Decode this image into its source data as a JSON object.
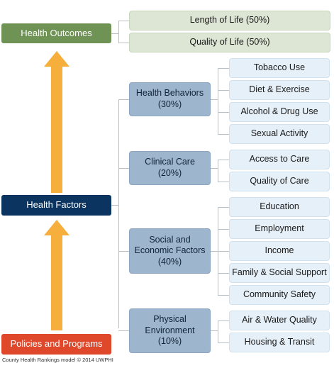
{
  "left": {
    "outcomes": "Health Outcomes",
    "factors": "Health Factors",
    "policies": "Policies and Programs"
  },
  "outcomes": [
    "Length of Life (50%)",
    "Quality of Life (50%)"
  ],
  "categories": [
    {
      "name": "Health Behaviors",
      "pct": "(30%)",
      "items": [
        "Tobacco Use",
        "Diet & Exercise",
        "Alcohol & Drug Use",
        "Sexual Activity"
      ]
    },
    {
      "name": "Clinical Care",
      "pct": "(20%)",
      "items": [
        "Access to Care",
        "Quality of Care"
      ]
    },
    {
      "name_line1": "Social and",
      "name_line2": "Economic Factors",
      "pct": "(40%)",
      "items": [
        "Education",
        "Employment",
        "Income",
        "Family & Social Support",
        "Community Safety"
      ]
    },
    {
      "name_line1": "Physical",
      "name_line2": "Environment",
      "pct": "(10%)",
      "items": [
        "Air & Water Quality",
        "Housing & Transit"
      ]
    }
  ],
  "credit": "County Health Rankings model © 2014 UWPHI",
  "colors": {
    "outcomes": "#6f9255",
    "factors": "#0b3560",
    "policies": "#e0482b",
    "arrow": "#f6ae3c",
    "category": "#9db6cd",
    "subitem": "#e6f0f8",
    "outcome_item": "#dde6d4"
  }
}
